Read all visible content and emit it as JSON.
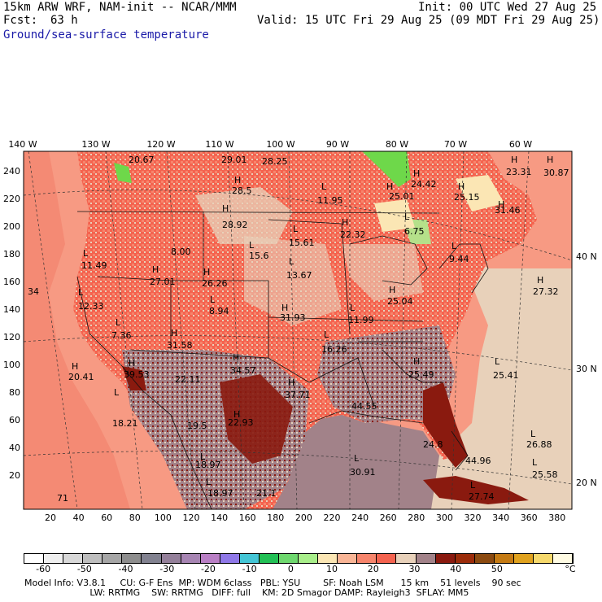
{
  "header": {
    "model_line": "15km ARW WRF, NAM-init -- NCAR/MMM",
    "forecast_label": "Fcst:",
    "forecast_value": "63 h",
    "init": "Init: 00 UTC Wed 27 Aug 25",
    "valid": "Valid: 15 UTC Fri 29 Aug 25 (09 MDT Fri 29 Aug 25)",
    "field": "Ground/sea-surface temperature"
  },
  "colors": {
    "land_hot": "#f4634f",
    "land_warm": "#f7856c",
    "sea_warm": "#f79a83",
    "cool": "#e8d1ba",
    "mauve": "#a28289",
    "dark_red": "#8a1a0f",
    "green": "#6ed84a",
    "pale": "#fbe6b4"
  },
  "top_axis": [
    "140 W",
    "130 W",
    "120 W",
    "110 W",
    "100 W",
    "90 W",
    "80 W",
    "70 W",
    "60 W"
  ],
  "left_axis": [
    "240",
    "220",
    "200",
    "180",
    "160",
    "140",
    "120",
    "100",
    "80",
    "60",
    "40",
    "20"
  ],
  "bottom_axis": [
    "20",
    "40",
    "60",
    "80",
    "100",
    "120",
    "140",
    "160",
    "180",
    "200",
    "220",
    "240",
    "260",
    "280",
    "300",
    "320",
    "340",
    "360",
    "380"
  ],
  "right_axis": [
    "40 N",
    "30 N",
    "20 N"
  ],
  "colorbar": {
    "colors": [
      "#ffffff",
      "#efefef",
      "#d8d8d8",
      "#bebebe",
      "#a6a6a6",
      "#8e8e8e",
      "#828290",
      "#94809a",
      "#a785b3",
      "#b97fc5",
      "#8f78e8",
      "#44c6d6",
      "#22c055",
      "#6ed86e",
      "#a8ee8a",
      "#fbe6b4",
      "#f9b596",
      "#f7856c",
      "#f4634f",
      "#e8d1ba",
      "#a28289",
      "#8a1a0f",
      "#9b2c0a",
      "#8b4a10",
      "#c47a13",
      "#e0a21e",
      "#f6d96c",
      "#fffbe3"
    ],
    "labels": [
      "-60",
      "-50",
      "-40",
      "-30",
      "-20",
      "-10",
      "0",
      "10",
      "20",
      "30",
      "40",
      "50"
    ],
    "unit": "°C"
  },
  "labels": [
    {
      "t": "20.67"
    },
    {
      "t": "29.01"
    },
    {
      "t": "28.25"
    },
    {
      "t": "H"
    },
    {
      "t": "28.5"
    },
    {
      "t": "H"
    },
    {
      "t": "28.92"
    },
    {
      "t": "L"
    },
    {
      "t": "11.95"
    },
    {
      "t": "H"
    },
    {
      "t": "25.01"
    },
    {
      "t": "H"
    },
    {
      "t": "24.42"
    },
    {
      "t": "H"
    },
    {
      "t": "25.15"
    },
    {
      "t": "H"
    },
    {
      "t": "23.31"
    },
    {
      "t": "H"
    },
    {
      "t": "30.87"
    },
    {
      "t": "H"
    },
    {
      "t": "31.46"
    },
    {
      "t": "L"
    },
    {
      "t": "6.75"
    },
    {
      "t": "L"
    },
    {
      "t": "15.61"
    },
    {
      "t": "H"
    },
    {
      "t": "22.32"
    },
    {
      "t": "L"
    },
    {
      "t": "9.44"
    },
    {
      "t": "L"
    },
    {
      "t": "11.49"
    },
    {
      "t": "8.00"
    },
    {
      "t": "L"
    },
    {
      "t": "15.6"
    },
    {
      "t": "L"
    },
    {
      "t": "13.67"
    },
    {
      "t": "H"
    },
    {
      "t": "27.01"
    },
    {
      "t": "H"
    },
    {
      "t": "26.26"
    },
    {
      "t": "H"
    },
    {
      "t": "25.04"
    },
    {
      "t": "H"
    },
    {
      "t": "27.32"
    },
    {
      "t": "34"
    },
    {
      "t": "L"
    },
    {
      "t": "12.33"
    },
    {
      "t": "L"
    },
    {
      "t": "8.94"
    },
    {
      "t": "H"
    },
    {
      "t": "31.93"
    },
    {
      "t": "L"
    },
    {
      "t": "11.99"
    },
    {
      "t": "L"
    },
    {
      "t": "7.36"
    },
    {
      "t": "H"
    },
    {
      "t": "31.58"
    },
    {
      "t": "L"
    },
    {
      "t": "16.26"
    },
    {
      "t": "H"
    },
    {
      "t": "20.41"
    },
    {
      "t": "H"
    },
    {
      "t": "39.53"
    },
    {
      "t": "22.11"
    },
    {
      "t": "H"
    },
    {
      "t": "34.57"
    },
    {
      "t": "L"
    },
    {
      "t": "25.41"
    },
    {
      "t": "H"
    },
    {
      "t": "25.49"
    },
    {
      "t": "H"
    },
    {
      "t": "37.71"
    },
    {
      "t": "44.55"
    },
    {
      "t": "L"
    },
    {
      "t": "18.21"
    },
    {
      "t": "19.5"
    },
    {
      "t": "H"
    },
    {
      "t": "22.93"
    },
    {
      "t": "24.8"
    },
    {
      "t": "L"
    },
    {
      "t": "26.88"
    },
    {
      "t": "L"
    },
    {
      "t": "18.97"
    },
    {
      "t": "L"
    },
    {
      "t": "30.91"
    },
    {
      "t": "44.96"
    },
    {
      "t": "L"
    },
    {
      "t": "25.58"
    },
    {
      "t": "L"
    },
    {
      "t": "18.97"
    },
    {
      "t": "21.1"
    },
    {
      "t": "L"
    },
    {
      "t": "27.74"
    },
    {
      "t": "71"
    }
  ],
  "footer": {
    "line1": "Model Info: V3.8.1     CU: G-F Ens  MP: WDM 6class   PBL: YSU        SF: Noah LSM      15 km    51 levels    90 sec",
    "line2": "                       LW: RRTMG    SW: RRTMG   DIFF: full    KM: 2D Smagor DAMP: Rayleigh3  SFLAY: MM5"
  }
}
